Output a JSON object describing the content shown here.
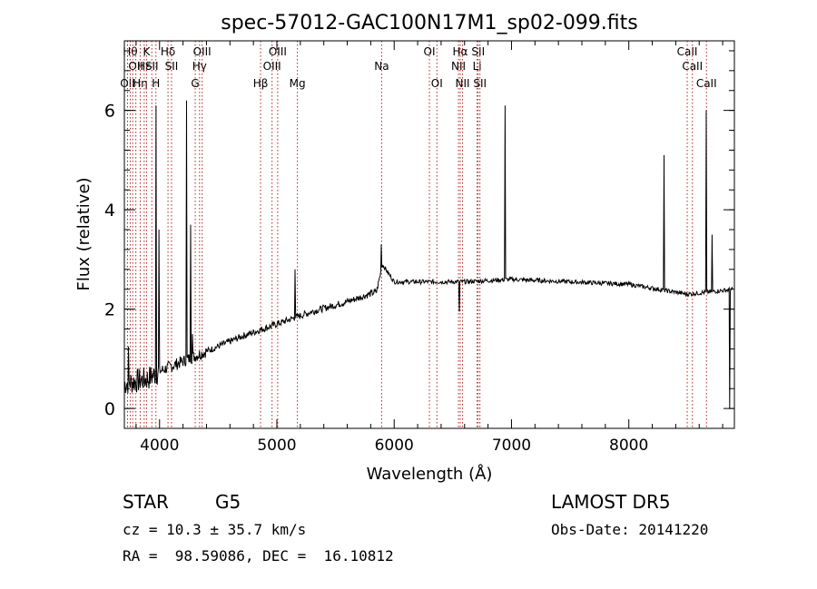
{
  "chart_data": {
    "type": "line",
    "title": "spec-57012-GAC100N17M1_sp02-099.fits",
    "xlabel": "Wavelength (Å)",
    "ylabel": "Flux (relative)",
    "xlim": [
      3700,
      8900
    ],
    "ylim": [
      -0.4,
      7.4
    ],
    "xticks": [
      4000,
      5000,
      6000,
      7000,
      8000
    ],
    "yticks": [
      0,
      2,
      4,
      6
    ],
    "grid": false,
    "continuum": [
      [
        3700,
        0.5
      ],
      [
        3800,
        0.55
      ],
      [
        3900,
        0.6
      ],
      [
        4000,
        0.75
      ],
      [
        4100,
        0.85
      ],
      [
        4200,
        0.95
      ],
      [
        4300,
        1.05
      ],
      [
        4500,
        1.25
      ],
      [
        4700,
        1.45
      ],
      [
        5000,
        1.7
      ],
      [
        5300,
        1.95
      ],
      [
        5600,
        2.15
      ],
      [
        5850,
        2.35
      ],
      [
        5900,
        2.9
      ],
      [
        6000,
        2.55
      ],
      [
        6300,
        2.55
      ],
      [
        6600,
        2.55
      ],
      [
        7000,
        2.6
      ],
      [
        7500,
        2.55
      ],
      [
        8000,
        2.5
      ],
      [
        8500,
        2.3
      ],
      [
        8900,
        2.4
      ]
    ],
    "spikes": [
      [
        3735,
        1.25
      ],
      [
        3970,
        6.1
      ],
      [
        3993,
        3.6
      ],
      [
        4228,
        6.2
      ],
      [
        4265,
        3.7
      ],
      [
        4280,
        1.5
      ],
      [
        5155,
        2.8
      ],
      [
        5890,
        3.3
      ],
      [
        6554,
        1.95
      ],
      [
        6943,
        6.1
      ],
      [
        8298,
        5.1
      ],
      [
        8660,
        6.0
      ],
      [
        8708,
        3.5
      ],
      [
        8860,
        0.0
      ]
    ],
    "lines": [
      {
        "wl": 3727,
        "row": 2,
        "label": "OII"
      },
      {
        "wl": 3750,
        "row": 0,
        "label": "Hθ"
      },
      {
        "wl": 3771,
        "row": 2,
        "label": ""
      },
      {
        "wl": 3798,
        "row": 1,
        "label": "OII"
      },
      {
        "wl": 3835,
        "row": 2,
        "label": "Hη"
      },
      {
        "wl": 3869,
        "row": 1,
        "label": "Hε"
      },
      {
        "wl": 3889,
        "row": 0,
        "label": "K"
      },
      {
        "wl": 3934,
        "row": 1,
        "label": "SII"
      },
      {
        "wl": 3969,
        "row": 2,
        "label": "H"
      },
      {
        "wl": 4072,
        "row": 0,
        "label": "Hδ"
      },
      {
        "wl": 4102,
        "row": 1,
        "label": "SII"
      },
      {
        "wl": 4304,
        "row": 2,
        "label": "G"
      },
      {
        "wl": 4341,
        "row": 1,
        "label": "Hγ"
      },
      {
        "wl": 4363,
        "row": 0,
        "label": "OIII"
      },
      {
        "wl": 4861,
        "row": 2,
        "label": "Hβ"
      },
      {
        "wl": 4959,
        "row": 1,
        "label": "OIII"
      },
      {
        "wl": 5007,
        "row": 0,
        "label": "OIII"
      },
      {
        "wl": 5175,
        "row": 2,
        "label": "Mg"
      },
      {
        "wl": 5893,
        "row": 1,
        "label": "Na"
      },
      {
        "wl": 6300,
        "row": 0,
        "label": "OI"
      },
      {
        "wl": 6364,
        "row": 2,
        "label": "OI"
      },
      {
        "wl": 6548,
        "row": 1,
        "label": "NII"
      },
      {
        "wl": 6563,
        "row": 0,
        "label": "Hα"
      },
      {
        "wl": 6583,
        "row": 2,
        "label": "NII"
      },
      {
        "wl": 6707,
        "row": 1,
        "label": "Li"
      },
      {
        "wl": 6716,
        "row": 0,
        "label": "SII"
      },
      {
        "wl": 6731,
        "row": 2,
        "label": "SII"
      },
      {
        "wl": 8498,
        "row": 0,
        "label": "CaII"
      },
      {
        "wl": 8542,
        "row": 1,
        "label": "CaII"
      },
      {
        "wl": 8662,
        "row": 2,
        "label": "CaII"
      }
    ]
  },
  "info": {
    "class": "STAR",
    "subclass": "G5",
    "survey": "LAMOST DR5",
    "cz": "cz = 10.3 ± 35.7 km/s",
    "obs_date": "Obs-Date: 20141220",
    "radec": "RA =  98.59086, DEC =  16.10812"
  }
}
